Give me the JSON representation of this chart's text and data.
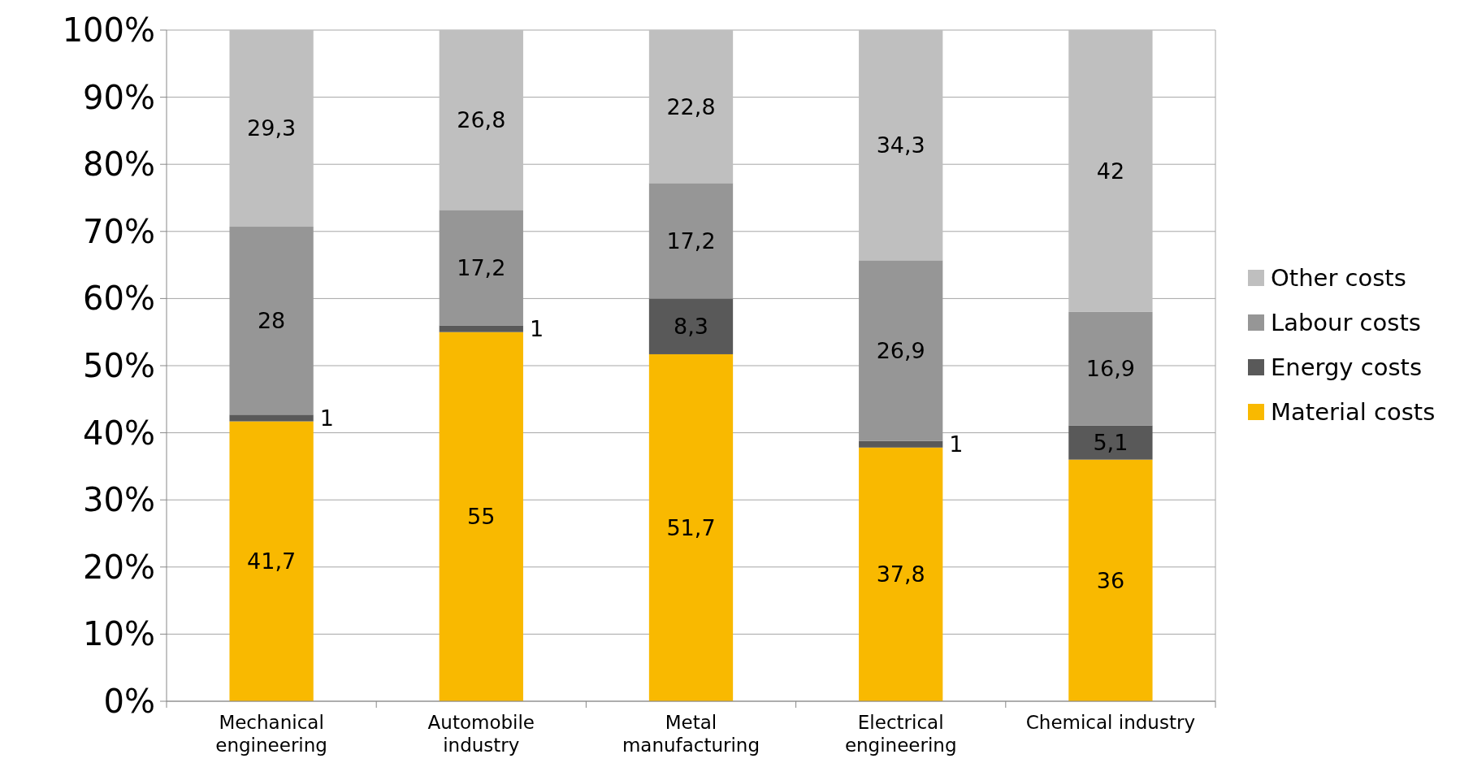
{
  "chart_data": {
    "type": "bar",
    "stacked": true,
    "categories": [
      "Mechanical engineering",
      "Automobile industry",
      "Metal manufacturing",
      "Electrical engineering",
      "Chemical industry"
    ],
    "series": [
      {
        "name": "Material costs",
        "color": "#f9b900",
        "values": [
          41.7,
          55,
          51.7,
          37.8,
          36
        ],
        "value_labels": [
          "41,7",
          "55",
          "51,7",
          "37,8",
          "36"
        ]
      },
      {
        "name": "Energy costs",
        "color": "#595959",
        "values": [
          1,
          1,
          8.3,
          1,
          5.1
        ],
        "value_labels": [
          "1",
          "1",
          "8,3",
          "1",
          "5,1"
        ]
      },
      {
        "name": "Labour costs",
        "color": "#969696",
        "values": [
          28,
          17.2,
          17.2,
          26.9,
          16.9
        ],
        "value_labels": [
          "28",
          "17,2",
          "17,2",
          "26,9",
          "16,9"
        ]
      },
      {
        "name": "Other costs",
        "color": "#bfbfbf",
        "values": [
          29.3,
          26.8,
          22.8,
          34.3,
          42
        ],
        "value_labels": [
          "29,3",
          "26,8",
          "22,8",
          "34,3",
          "42"
        ]
      }
    ],
    "ylim": [
      0,
      100
    ],
    "yticks": [
      {
        "value": 0,
        "label": "0%"
      },
      {
        "value": 10,
        "label": "10%"
      },
      {
        "value": 20,
        "label": "20%"
      },
      {
        "value": 30,
        "label": "30%"
      },
      {
        "value": 40,
        "label": "40%"
      },
      {
        "value": 50,
        "label": "50%"
      },
      {
        "value": 60,
        "label": "60%"
      },
      {
        "value": 70,
        "label": "70%"
      },
      {
        "value": 80,
        "label": "80%"
      },
      {
        "value": 90,
        "label": "90%"
      },
      {
        "value": 100,
        "label": "100%"
      }
    ],
    "grid": "y",
    "legend": "right"
  }
}
